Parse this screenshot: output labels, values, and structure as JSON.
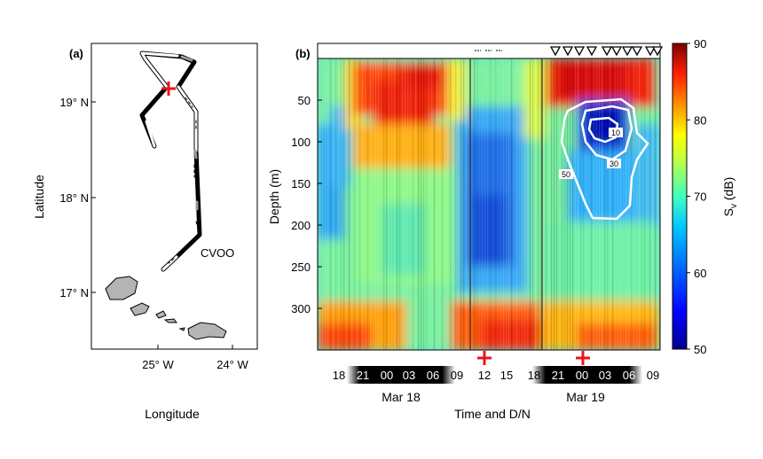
{
  "panel_a": {
    "label": "(a)",
    "xlabel": "Longitude",
    "ylabel": "Latitude",
    "xticks": [
      "25° W",
      "24° W"
    ],
    "yticks": [
      "19° N",
      "18° N",
      "17° N"
    ],
    "station_label": "CVOO"
  },
  "panel_b": {
    "label": "(b)",
    "ylabel": "Depth (m)",
    "xlabel": "Time and D/N",
    "hour_ticks": [
      "18",
      "21",
      "00",
      "03",
      "06",
      "09",
      "12",
      "15",
      "18",
      "21",
      "00",
      "03",
      "06",
      "09"
    ],
    "date_labels": [
      "Mar 18",
      "Mar 19"
    ],
    "colorbar_label": "S",
    "colorbar_sub": "v",
    "colorbar_unit": " (dB)",
    "contour_labels": [
      "10",
      "30",
      "50"
    ]
  },
  "colors": {
    "track_dark": "#111111",
    "track_gray": "#9a9a9a",
    "island": "#b4b4b4",
    "marker_red": "#e8141c"
  },
  "chart_data": [
    {
      "type": "map",
      "xlabel": "Longitude",
      "ylabel": "Latitude",
      "xticks": [
        "25° W",
        "24° W"
      ],
      "yticks": [
        "19° N",
        "18° N",
        "17° N"
      ],
      "xlim": [
        -25.75,
        -23.7
      ],
      "ylim": [
        16.3,
        19.7
      ],
      "annotations": [
        "CVOO"
      ]
    },
    {
      "type": "heatmap",
      "ylabel": "Depth (m)",
      "xlabel": "Time and D/N",
      "yticks": [
        50,
        100,
        150,
        200,
        250,
        300
      ],
      "ylim": [
        0,
        350
      ],
      "xtick_labels": [
        "18",
        "21",
        "00",
        "03",
        "06",
        "09",
        "12",
        "15",
        "18",
        "21",
        "00",
        "03",
        "06",
        "09"
      ],
      "dates": [
        "Mar 18",
        "Mar 19"
      ],
      "colorbar": {
        "label": "Sᵥ (dB)",
        "range": [
          50,
          90
        ],
        "ticks": [
          50,
          60,
          70,
          80,
          90
        ]
      },
      "contour_levels": [
        10,
        30,
        50
      ]
    }
  ]
}
